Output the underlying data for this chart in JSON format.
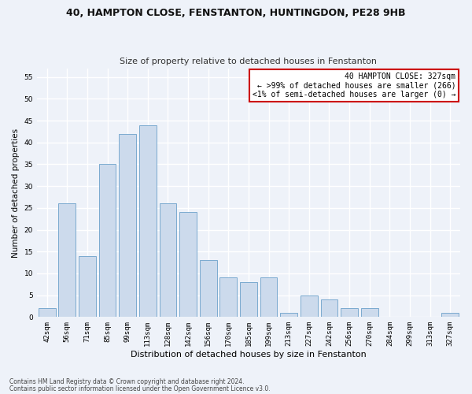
{
  "title1": "40, HAMPTON CLOSE, FENSTANTON, HUNTINGDON, PE28 9HB",
  "title2": "Size of property relative to detached houses in Fenstanton",
  "xlabel": "Distribution of detached houses by size in Fenstanton",
  "ylabel": "Number of detached properties",
  "categories": [
    "42sqm",
    "56sqm",
    "71sqm",
    "85sqm",
    "99sqm",
    "113sqm",
    "128sqm",
    "142sqm",
    "156sqm",
    "170sqm",
    "185sqm",
    "199sqm",
    "213sqm",
    "227sqm",
    "242sqm",
    "256sqm",
    "270sqm",
    "284sqm",
    "299sqm",
    "313sqm",
    "327sqm"
  ],
  "values": [
    2,
    26,
    14,
    35,
    42,
    44,
    26,
    24,
    13,
    9,
    8,
    9,
    1,
    5,
    4,
    2,
    2,
    0,
    0,
    0,
    1
  ],
  "bar_color": "#ccdaec",
  "bar_edge_color": "#7aaacf",
  "annotation_title": "40 HAMPTON CLOSE: 327sqm",
  "annotation_line1": "← >99% of detached houses are smaller (266)",
  "annotation_line2": "<1% of semi-detached houses are larger (0) →",
  "annotation_box_color": "#ffffff",
  "annotation_box_edge": "#cc0000",
  "footnote1": "Contains HM Land Registry data © Crown copyright and database right 2024.",
  "footnote2": "Contains public sector information licensed under the Open Government Licence v3.0.",
  "ylim": [
    0,
    57
  ],
  "yticks": [
    0,
    5,
    10,
    15,
    20,
    25,
    30,
    35,
    40,
    45,
    50,
    55
  ],
  "bg_color": "#eef2f9",
  "grid_color": "#ffffff",
  "title1_fontsize": 9,
  "title2_fontsize": 8,
  "xlabel_fontsize": 8,
  "ylabel_fontsize": 7.5,
  "tick_fontsize": 6.5,
  "annot_fontsize": 7,
  "footnote_fontsize": 5.5
}
